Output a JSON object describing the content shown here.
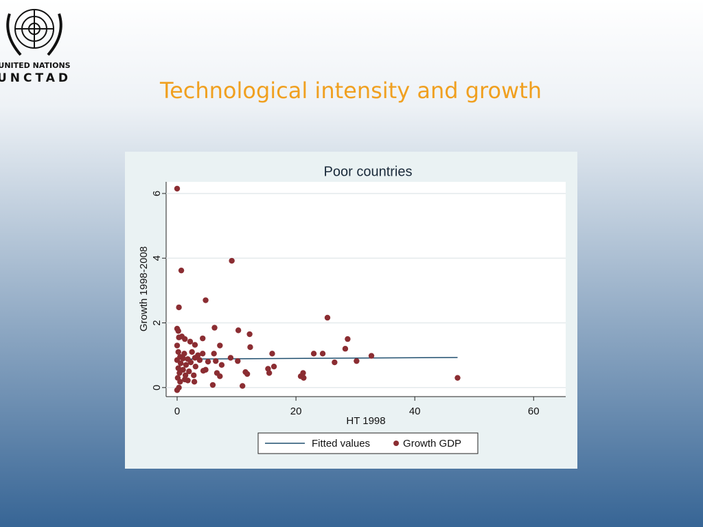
{
  "logo": {
    "line1": "UNITED NATIONS",
    "line2": "UNCTAD"
  },
  "slide_title": "Technological intensity and growth",
  "chart_data": {
    "type": "scatter",
    "title": "Poor countries",
    "x_label": "HT 1998",
    "y_label": "Growth 1998-2008",
    "xlim": [
      -1.85,
      65.4
    ],
    "ylim": [
      -0.28,
      6.36
    ],
    "xticks": [
      0,
      20,
      40,
      60
    ],
    "yticks": [
      0,
      2,
      4,
      6
    ],
    "grid": true,
    "legend": "bottom",
    "series": [
      {
        "name": "Fitted values",
        "color": "#1f4e6e",
        "style": "line",
        "x": [
          0,
          47.2
        ],
        "values": [
          0.88,
          0.93
        ]
      },
      {
        "name": "Growth GDP",
        "color": "#8b2d32",
        "style": "markers",
        "x": [
          0,
          9.2,
          0.7,
          4.8,
          0.3,
          25.3,
          0,
          0.2,
          6.3,
          10.3,
          12.2,
          0.3,
          0.8,
          1.3,
          2.2,
          4.3,
          7.2,
          28.7,
          0,
          3,
          12.3,
          28.3,
          0.2,
          1.2,
          2.5,
          3.5,
          4.3,
          6.2,
          16,
          23,
          24.5,
          32.7,
          0.5,
          1,
          1.8,
          3,
          3.8,
          5.2,
          6.5,
          9,
          10.2,
          26.5,
          30.2,
          0,
          0.6,
          1.5,
          2.3,
          3.1,
          4.8,
          7.5,
          16.3,
          15.3,
          0.2,
          1,
          2,
          4.4,
          6.7,
          11.5,
          15.5,
          21.2,
          0.4,
          1.4,
          2.8,
          7.2,
          11.8,
          20.8,
          21.3,
          47.2,
          0.1,
          1.3,
          2.9,
          1.8,
          0.5,
          6,
          11,
          0.3,
          0
        ],
        "values": [
          6.15,
          3.92,
          3.62,
          2.7,
          2.48,
          2.16,
          1.82,
          1.75,
          1.85,
          1.77,
          1.65,
          1.55,
          1.58,
          1.5,
          1.42,
          1.52,
          1.3,
          1.5,
          1.3,
          1.32,
          1.25,
          1.2,
          1.1,
          1.05,
          1.1,
          1,
          1.05,
          1.05,
          1.05,
          1.05,
          1.05,
          0.98,
          0.95,
          0.9,
          0.88,
          0.92,
          0.85,
          0.8,
          0.82,
          0.92,
          0.82,
          0.78,
          0.82,
          0.85,
          0.75,
          0.7,
          0.78,
          0.65,
          0.55,
          0.7,
          0.65,
          0.58,
          0.6,
          0.55,
          0.5,
          0.52,
          0.45,
          0.48,
          0.45,
          0.45,
          0.45,
          0.38,
          0.38,
          0.35,
          0.42,
          0.35,
          0.3,
          0.3,
          0.3,
          0.25,
          0.18,
          0.22,
          0.18,
          0.08,
          0.05,
          0,
          -0.08
        ]
      }
    ]
  }
}
